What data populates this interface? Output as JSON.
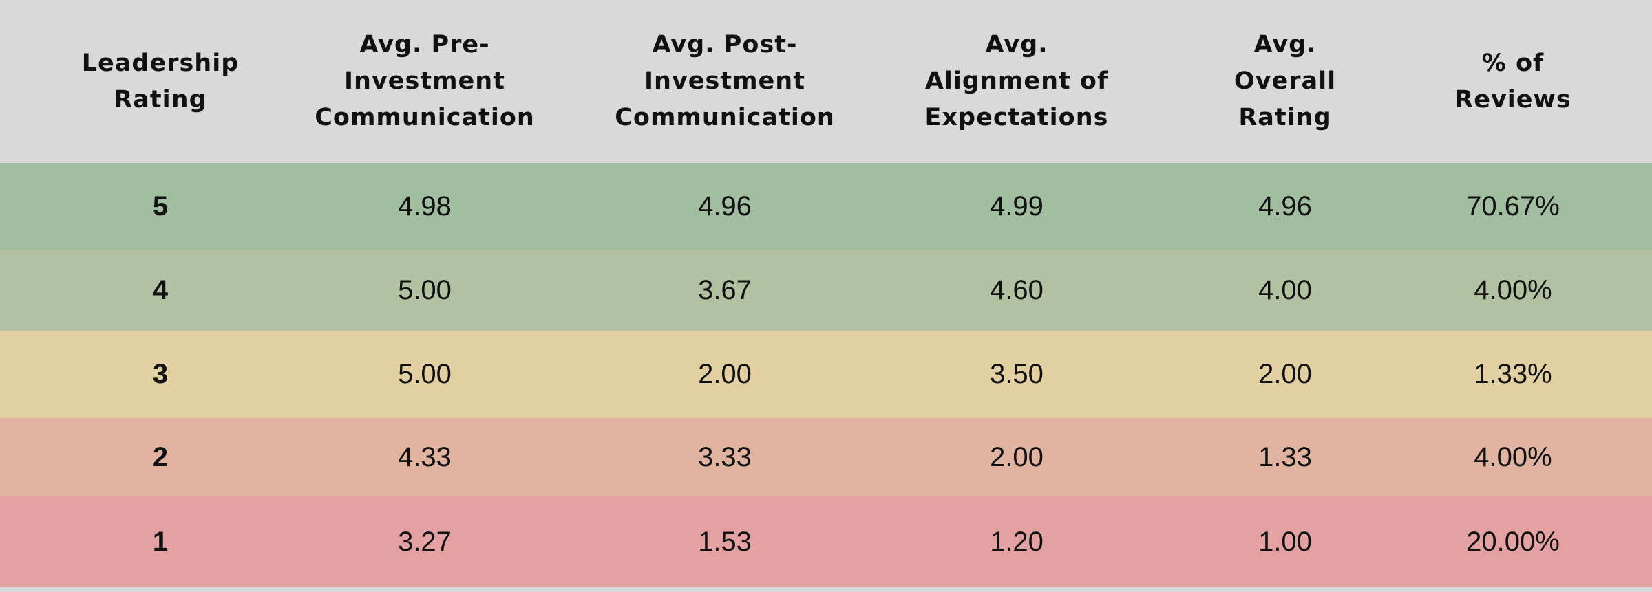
{
  "table": {
    "header": [
      {
        "lines": [
          "Leadership",
          "Rating"
        ]
      },
      {
        "lines": [
          "Avg. Pre-",
          "Investment",
          "Communication"
        ]
      },
      {
        "lines": [
          "Avg. Post-",
          "Investment",
          "Communication"
        ]
      },
      {
        "lines": [
          "Avg.",
          "Alignment of",
          "Expectations"
        ]
      },
      {
        "lines": [
          "Avg.",
          "Overall",
          "Rating"
        ]
      },
      {
        "lines": [
          "% of",
          "Reviews"
        ]
      }
    ],
    "rows": [
      {
        "color": "#a1bea0",
        "cells": [
          "5",
          "4.98",
          "4.96",
          "4.99",
          "4.96",
          "70.67%"
        ]
      },
      {
        "color": "#b3c1a3",
        "cells": [
          "4",
          "5.00",
          "3.67",
          "4.60",
          "4.00",
          "4.00%"
        ]
      },
      {
        "color": "#e3d0a2",
        "cells": [
          "3",
          "5.00",
          "2.00",
          "3.50",
          "2.00",
          "1.33%"
        ]
      },
      {
        "color": "#e1b4a1",
        "cells": [
          "2",
          "4.33",
          "3.33",
          "2.00",
          "1.33",
          "4.00%"
        ]
      },
      {
        "color": "#e3a1a1",
        "cells": [
          "1",
          "3.27",
          "1.53",
          "1.20",
          "1.00",
          "20.00%"
        ]
      }
    ]
  }
}
